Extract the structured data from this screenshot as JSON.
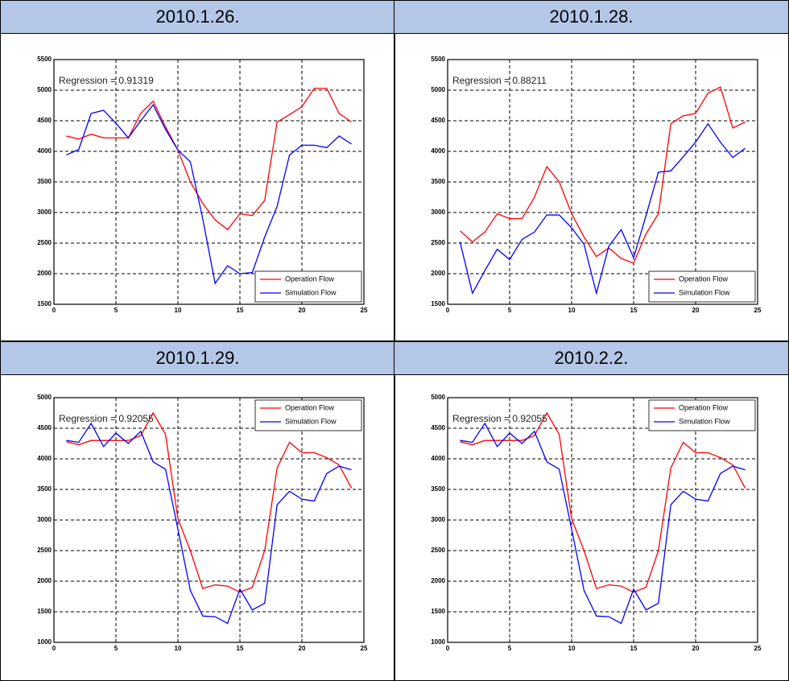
{
  "chart_data": [
    {
      "type": "line",
      "title": "2010.1.26.",
      "annotation": "Regression = 0.91319",
      "legend": "lower right",
      "grid": true,
      "x": [
        1,
        2,
        3,
        4,
        5,
        6,
        7,
        8,
        9,
        10,
        11,
        12,
        13,
        14,
        15,
        16,
        17,
        18,
        19,
        20,
        21,
        22,
        23,
        24
      ],
      "xlim": [
        0,
        25
      ],
      "xticks": [
        0,
        5,
        10,
        15,
        20,
        25
      ],
      "ylim": [
        1500,
        5500
      ],
      "yticks": [
        1500,
        2000,
        2500,
        3000,
        3500,
        4000,
        4500,
        5000,
        5500
      ],
      "series": [
        {
          "name": "Operation Flow",
          "color": "#ff0000",
          "values": [
            4250,
            4200,
            4280,
            4220,
            4220,
            4220,
            4620,
            4820,
            4400,
            4020,
            3500,
            3150,
            2880,
            2720,
            2980,
            2950,
            3200,
            4480,
            4600,
            4730,
            5030,
            5030,
            4620,
            4480
          ]
        },
        {
          "name": "Simulation Flow",
          "color": "#0000ff",
          "values": [
            3940,
            4030,
            4620,
            4670,
            4460,
            4220,
            4500,
            4760,
            4360,
            4020,
            3830,
            2900,
            1840,
            2130,
            2000,
            2020,
            2600,
            3100,
            3940,
            4100,
            4100,
            4060,
            4250,
            4120
          ]
        }
      ]
    },
    {
      "type": "line",
      "title": "2010.1.28.",
      "annotation": "Regression = 0.88211",
      "legend": "lower right",
      "grid": true,
      "x": [
        1,
        2,
        3,
        4,
        5,
        6,
        7,
        8,
        9,
        10,
        11,
        12,
        13,
        14,
        15,
        16,
        17,
        18,
        19,
        20,
        21,
        22,
        23,
        24
      ],
      "xlim": [
        0,
        25
      ],
      "xticks": [
        0,
        5,
        10,
        15,
        20,
        25
      ],
      "ylim": [
        1500,
        5500
      ],
      "yticks": [
        1500,
        2000,
        2500,
        3000,
        3500,
        4000,
        4500,
        5000,
        5500
      ],
      "series": [
        {
          "name": "Operation Flow",
          "color": "#ff0000",
          "values": [
            2700,
            2520,
            2680,
            2980,
            2900,
            2900,
            3250,
            3750,
            3500,
            2980,
            2600,
            2280,
            2420,
            2250,
            2170,
            2650,
            2980,
            4450,
            4580,
            4620,
            4950,
            5050,
            4380,
            4480
          ]
        },
        {
          "name": "Simulation Flow",
          "color": "#0000ff",
          "values": [
            2520,
            1680,
            2050,
            2400,
            2230,
            2560,
            2680,
            2960,
            2960,
            2750,
            2480,
            1680,
            2450,
            2720,
            2260,
            2950,
            3660,
            3680,
            3910,
            4150,
            4450,
            4150,
            3900,
            4050
          ]
        }
      ]
    },
    {
      "type": "line",
      "title": "2010.1.29.",
      "annotation": "Regression = 0.92055",
      "legend": "upper right",
      "grid": true,
      "x": [
        1,
        2,
        3,
        4,
        5,
        6,
        7,
        8,
        9,
        10,
        11,
        12,
        13,
        14,
        15,
        16,
        17,
        18,
        19,
        20,
        21,
        22,
        23,
        24
      ],
      "xlim": [
        0,
        25
      ],
      "xticks": [
        0,
        5,
        10,
        15,
        20,
        25
      ],
      "ylim": [
        1000,
        5000
      ],
      "yticks": [
        1000,
        1500,
        2000,
        2500,
        3000,
        3500,
        4000,
        4500,
        5000
      ],
      "series": [
        {
          "name": "Operation Flow",
          "color": "#ff0000",
          "values": [
            4280,
            4230,
            4300,
            4300,
            4300,
            4300,
            4380,
            4750,
            4400,
            3020,
            2500,
            1880,
            1940,
            1920,
            1820,
            1900,
            2500,
            3850,
            4270,
            4100,
            4100,
            4020,
            3900,
            3520
          ]
        },
        {
          "name": "Simulation Flow",
          "color": "#0000ff",
          "values": [
            4300,
            4270,
            4580,
            4200,
            4420,
            4250,
            4450,
            3950,
            3830,
            2850,
            1850,
            1430,
            1420,
            1310,
            1870,
            1530,
            1640,
            3250,
            3470,
            3340,
            3310,
            3760,
            3880,
            3820
          ]
        }
      ]
    },
    {
      "type": "line",
      "title": "2010.2.2.",
      "annotation": "Regression = 0.92055",
      "legend": "upper right",
      "grid": true,
      "x": [
        1,
        2,
        3,
        4,
        5,
        6,
        7,
        8,
        9,
        10,
        11,
        12,
        13,
        14,
        15,
        16,
        17,
        18,
        19,
        20,
        21,
        22,
        23,
        24
      ],
      "xlim": [
        0,
        25
      ],
      "xticks": [
        0,
        5,
        10,
        15,
        20,
        25
      ],
      "ylim": [
        1000,
        5000
      ],
      "yticks": [
        1000,
        1500,
        2000,
        2500,
        3000,
        3500,
        4000,
        4500,
        5000
      ],
      "series": [
        {
          "name": "Operation Flow",
          "color": "#ff0000",
          "values": [
            4280,
            4230,
            4300,
            4300,
            4300,
            4300,
            4380,
            4750,
            4400,
            3020,
            2500,
            1880,
            1940,
            1920,
            1820,
            1900,
            2500,
            3850,
            4270,
            4100,
            4100,
            4020,
            3900,
            3520
          ]
        },
        {
          "name": "Simulation Flow",
          "color": "#0000ff",
          "values": [
            4300,
            4270,
            4580,
            4200,
            4420,
            4250,
            4450,
            3950,
            3830,
            2850,
            1850,
            1430,
            1420,
            1310,
            1870,
            1530,
            1640,
            3250,
            3470,
            3340,
            3310,
            3760,
            3880,
            3820
          ]
        }
      ]
    }
  ]
}
